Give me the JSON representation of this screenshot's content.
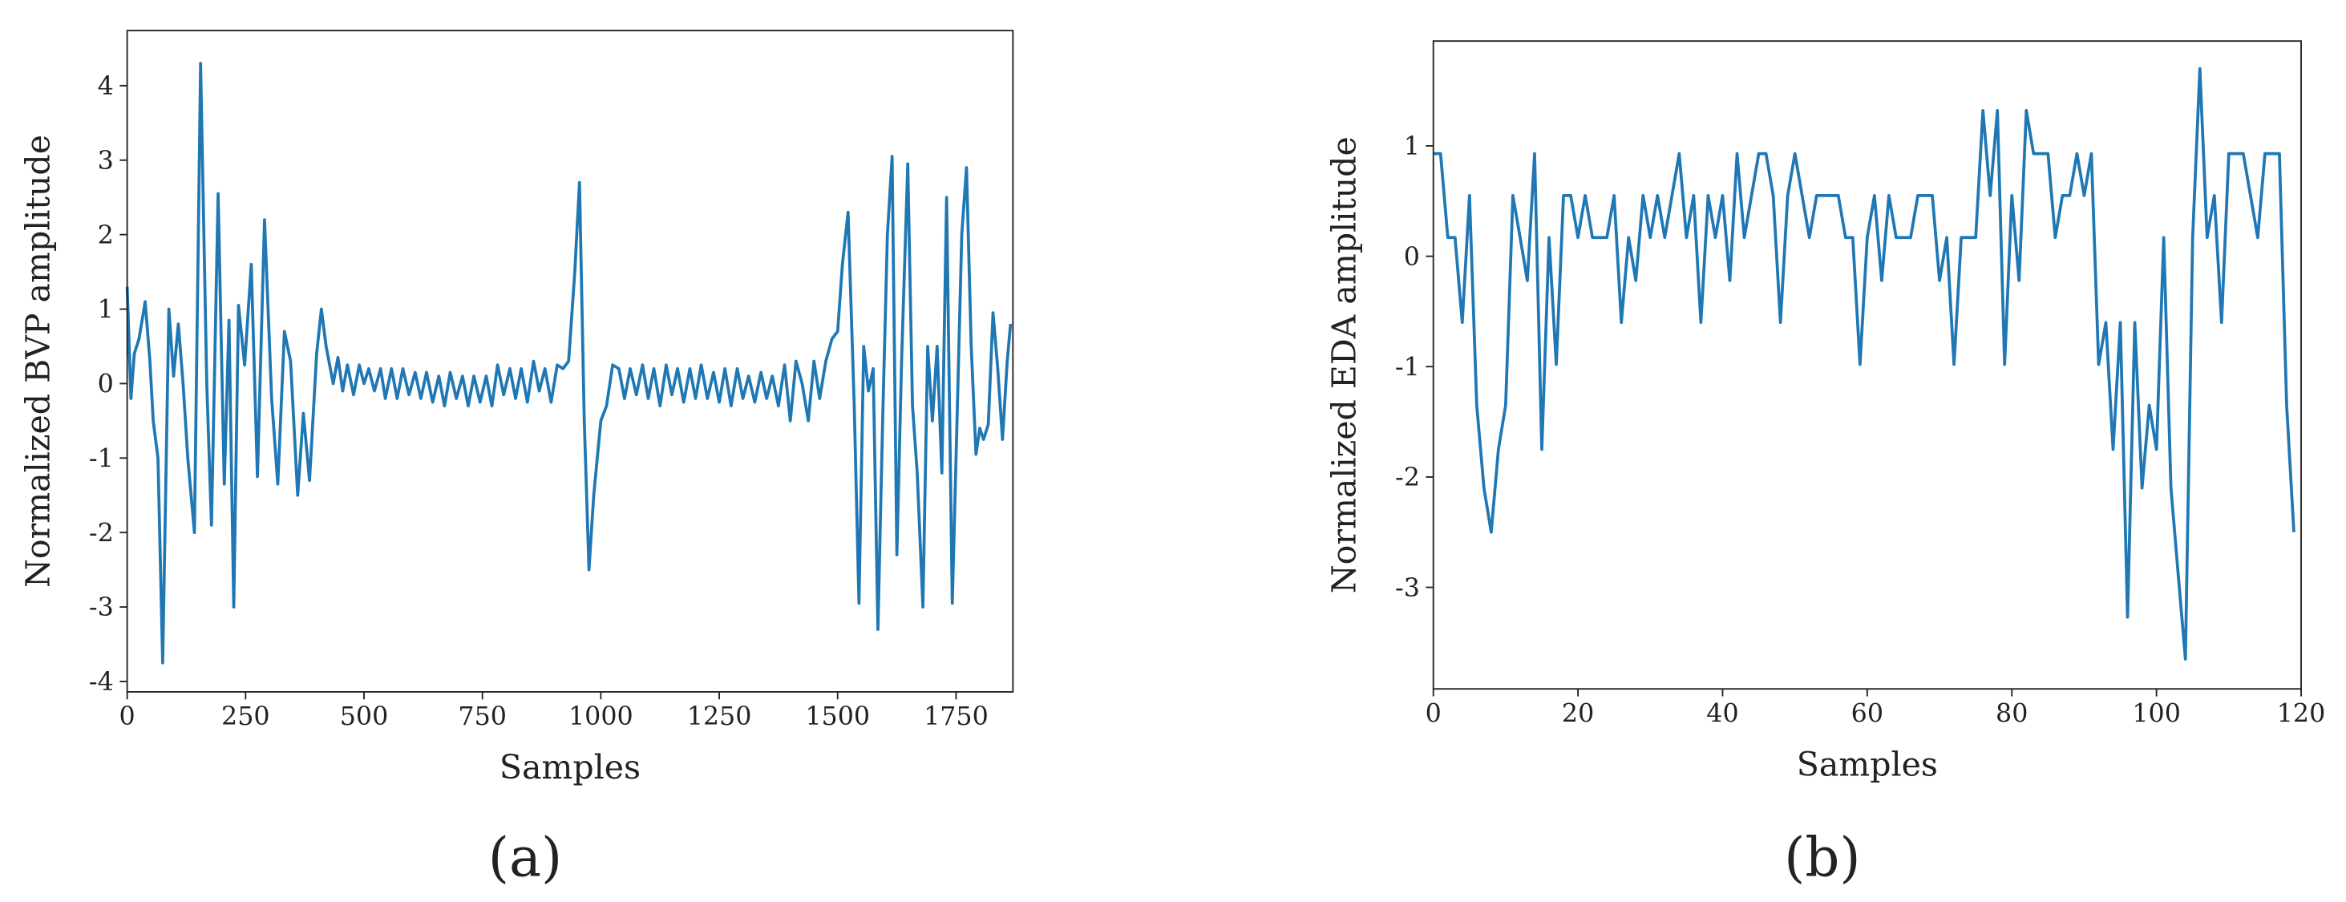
{
  "chart_data": [
    {
      "type": "line",
      "caption": "(a)",
      "x_label": "Samples",
      "y_label": "Normalized BVP amplitude",
      "xlim": [
        0,
        1870
      ],
      "ylim": [
        -4.14,
        4.74
      ],
      "xticks": [
        0,
        250,
        500,
        750,
        1000,
        1250,
        1500,
        1750
      ],
      "yticks": [
        -4,
        -3,
        -2,
        -1,
        0,
        1,
        2,
        3,
        4
      ],
      "color": "#1f77b4",
      "x": [
        0,
        8,
        15,
        25,
        38,
        48,
        55,
        65,
        75,
        88,
        98,
        108,
        118,
        128,
        142,
        155,
        168,
        178,
        192,
        205,
        215,
        225,
        235,
        248,
        262,
        275,
        290,
        305,
        318,
        332,
        345,
        360,
        372,
        385,
        400,
        410,
        420,
        435,
        445,
        455,
        465,
        478,
        490,
        500,
        510,
        522,
        535,
        545,
        558,
        570,
        582,
        595,
        608,
        620,
        632,
        645,
        658,
        670,
        682,
        695,
        708,
        720,
        732,
        745,
        758,
        770,
        782,
        795,
        808,
        820,
        832,
        845,
        858,
        870,
        882,
        895,
        908,
        920,
        932,
        945,
        955,
        965,
        975,
        985,
        1000,
        1012,
        1025,
        1038,
        1050,
        1062,
        1075,
        1088,
        1100,
        1112,
        1125,
        1138,
        1150,
        1162,
        1175,
        1188,
        1200,
        1212,
        1225,
        1238,
        1250,
        1262,
        1275,
        1288,
        1300,
        1312,
        1325,
        1338,
        1350,
        1362,
        1375,
        1388,
        1400,
        1412,
        1425,
        1438,
        1450,
        1462,
        1475,
        1488,
        1500,
        1510,
        1522,
        1535,
        1545,
        1555,
        1565,
        1575,
        1585,
        1595,
        1605,
        1615,
        1625,
        1635,
        1648,
        1658,
        1668,
        1680,
        1690,
        1700,
        1710,
        1720,
        1730,
        1742,
        1752,
        1762,
        1772,
        1782,
        1792,
        1800,
        1808,
        1818,
        1828,
        1838,
        1848,
        1858,
        1865
      ],
      "values": [
        1.3,
        -0.2,
        0.4,
        0.6,
        1.1,
        0.3,
        -0.5,
        -1.0,
        -3.75,
        1.0,
        0.1,
        0.8,
        0.0,
        -1.0,
        -2.0,
        4.3,
        0.0,
        -1.9,
        2.55,
        -1.35,
        0.85,
        -3.0,
        1.05,
        0.25,
        1.6,
        -1.25,
        2.2,
        -0.2,
        -1.35,
        0.7,
        0.3,
        -1.5,
        -0.4,
        -1.3,
        0.4,
        1.0,
        0.5,
        0.0,
        0.35,
        -0.1,
        0.25,
        -0.15,
        0.25,
        0.0,
        0.2,
        -0.1,
        0.2,
        -0.2,
        0.2,
        -0.2,
        0.2,
        -0.15,
        0.15,
        -0.2,
        0.15,
        -0.25,
        0.1,
        -0.3,
        0.15,
        -0.2,
        0.1,
        -0.3,
        0.1,
        -0.25,
        0.1,
        -0.3,
        0.25,
        -0.15,
        0.2,
        -0.2,
        0.2,
        -0.25,
        0.3,
        -0.1,
        0.2,
        -0.25,
        0.25,
        0.2,
        0.3,
        1.5,
        2.7,
        -0.5,
        -2.5,
        -1.5,
        -0.5,
        -0.3,
        0.25,
        0.2,
        -0.2,
        0.2,
        -0.15,
        0.25,
        -0.2,
        0.2,
        -0.3,
        0.25,
        -0.15,
        0.2,
        -0.25,
        0.2,
        -0.2,
        0.25,
        -0.2,
        0.15,
        -0.25,
        0.2,
        -0.3,
        0.2,
        -0.2,
        0.1,
        -0.25,
        0.15,
        -0.2,
        0.1,
        -0.3,
        0.25,
        -0.5,
        0.3,
        0.0,
        -0.5,
        0.3,
        -0.2,
        0.3,
        0.6,
        0.7,
        1.6,
        2.3,
        -0.3,
        -2.95,
        0.5,
        -0.1,
        0.2,
        -3.3,
        -0.5,
        2.0,
        3.05,
        -2.3,
        0.3,
        2.95,
        -0.3,
        -1.2,
        -3.0,
        0.5,
        -0.5,
        0.5,
        -1.2,
        2.5,
        -2.95,
        -0.5,
        2.0,
        2.9,
        0.5,
        -0.95,
        -0.6,
        -0.75,
        -0.55,
        0.95,
        0.2,
        -0.75,
        0.3,
        0.8
      ]
    },
    {
      "type": "line",
      "caption": "(b)",
      "x_label": "Samples",
      "y_label": "Normalized EDA amplitude",
      "xlim": [
        0,
        120
      ],
      "ylim": [
        -3.92,
        1.95
      ],
      "xticks": [
        0,
        20,
        40,
        60,
        80,
        100,
        120
      ],
      "yticks": [
        -3,
        -2,
        -1,
        0,
        1
      ],
      "color": "#1f77b4",
      "x": [
        0,
        1,
        2,
        3,
        4,
        5,
        6,
        7,
        8,
        9,
        10,
        11,
        12,
        13,
        14,
        15,
        16,
        17,
        18,
        19,
        20,
        21,
        22,
        23,
        24,
        25,
        26,
        27,
        28,
        29,
        30,
        31,
        32,
        33,
        34,
        35,
        36,
        37,
        38,
        39,
        40,
        41,
        42,
        43,
        44,
        45,
        46,
        47,
        48,
        49,
        50,
        51,
        52,
        53,
        54,
        55,
        56,
        57,
        58,
        59,
        60,
        61,
        62,
        63,
        64,
        65,
        66,
        67,
        68,
        69,
        70,
        71,
        72,
        73,
        74,
        75,
        76,
        77,
        78,
        79,
        80,
        81,
        82,
        83,
        84,
        85,
        86,
        87,
        88,
        89,
        90,
        91,
        92,
        93,
        94,
        95,
        96,
        97,
        98,
        99,
        100,
        101,
        102,
        103,
        104,
        105,
        106,
        107,
        108,
        109,
        110,
        111,
        112,
        113,
        114,
        115,
        116,
        117,
        118,
        119
      ],
      "values": [
        0.93,
        0.93,
        0.17,
        0.17,
        -0.6,
        0.55,
        -1.35,
        -2.1,
        -2.5,
        -1.75,
        -1.35,
        0.55,
        0.17,
        -0.22,
        0.93,
        -1.75,
        0.17,
        -0.98,
        0.55,
        0.55,
        0.17,
        0.55,
        0.17,
        0.17,
        0.17,
        0.55,
        -0.6,
        0.17,
        -0.22,
        0.55,
        0.17,
        0.55,
        0.17,
        0.55,
        0.93,
        0.17,
        0.55,
        -0.6,
        0.55,
        0.17,
        0.55,
        -0.22,
        0.93,
        0.17,
        0.55,
        0.93,
        0.93,
        0.55,
        -0.6,
        0.55,
        0.93,
        0.55,
        0.17,
        0.55,
        0.55,
        0.55,
        0.55,
        0.17,
        0.17,
        -0.98,
        0.17,
        0.55,
        -0.22,
        0.55,
        0.17,
        0.17,
        0.17,
        0.55,
        0.55,
        0.55,
        -0.22,
        0.17,
        -0.98,
        0.17,
        0.17,
        0.17,
        1.32,
        0.55,
        1.32,
        -0.98,
        0.55,
        -0.22,
        1.32,
        0.93,
        0.93,
        0.93,
        0.17,
        0.55,
        0.55,
        0.93,
        0.55,
        0.93,
        -0.98,
        -0.6,
        -1.75,
        -0.6,
        -3.27,
        -0.6,
        -2.1,
        -1.35,
        -1.75,
        0.17,
        -2.1,
        -2.88,
        -3.65,
        0.17,
        1.7,
        0.17,
        0.55,
        -0.6,
        0.93,
        0.93,
        0.93,
        0.55,
        0.17,
        0.93,
        0.93,
        0.93,
        -1.35,
        -2.5
      ]
    }
  ]
}
